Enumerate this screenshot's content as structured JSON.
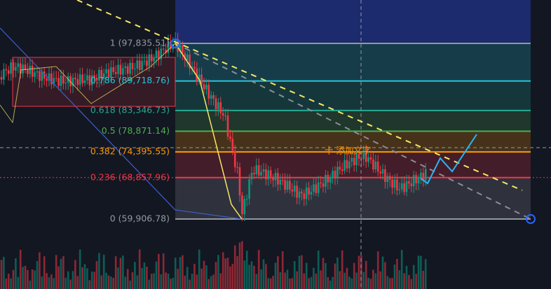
{
  "fib": {
    "levels": [
      {
        "label": "1 (97,835.51)",
        "value": 97835.51,
        "color": "#9598a1"
      },
      {
        "label": "0.786 (89,718.76)",
        "value": 89718.76,
        "color": "#26c6da"
      },
      {
        "label": "0.618 (83,346.73)",
        "value": 83346.73,
        "color": "#22ab94"
      },
      {
        "label": "0.5 (78,871.14)",
        "value": 78871.14,
        "color": "#4caf50"
      },
      {
        "label": "0.382 (74,395.55)",
        "value": 74395.55,
        "color": "#ff9800"
      },
      {
        "label": "0.236 (68,857.96)",
        "value": 68857.96,
        "color": "#f23645"
      },
      {
        "label": "0 (59,906.78)",
        "value": 59906.78,
        "color": "#9598a1"
      }
    ]
  },
  "annotation": "十 添加文字"
}
